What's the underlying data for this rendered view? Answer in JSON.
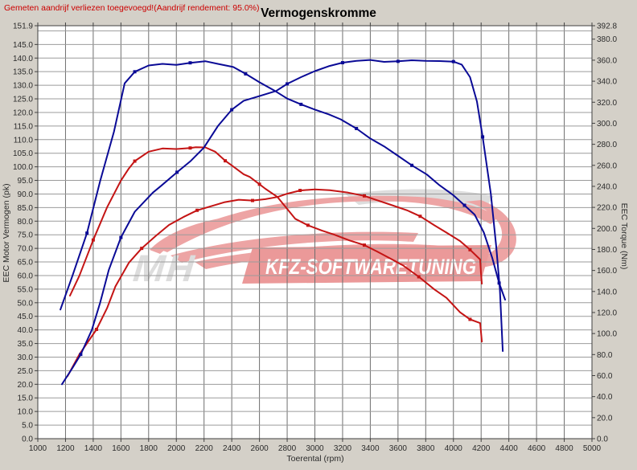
{
  "chart_data": {
    "type": "line",
    "title": "Vermogenskromme",
    "note": "Gemeten aandrijf verliezen toegevoegd!(Aandrijf rendement: 95.0%)",
    "xlabel": "Toerental (rpm)",
    "ylabel_left": "EEC Motor Vermogen (pk)",
    "ylabel_right": "EEC Torque (Nm)",
    "x_range": [
      1000,
      5000
    ],
    "y_left_range": [
      0,
      151.9
    ],
    "y_right_range": [
      0,
      392.8
    ],
    "grid": {
      "x_step": 200,
      "y_left_step": 5,
      "grid_on": true
    },
    "legend": "none",
    "x_tick_labels": [
      "1000",
      "1200",
      "1400",
      "1600",
      "1800",
      "2000",
      "2200",
      "2400",
      "2600",
      "2800",
      "3000",
      "3200",
      "3400",
      "3600",
      "3800",
      "4000",
      "4200",
      "4400",
      "4600",
      "4800",
      "5000"
    ],
    "y_left_tick_labels": [
      "151.9",
      "145.0",
      "140.0",
      "135.0",
      "130.0",
      "125.0",
      "120.0",
      "115.0",
      "110.0",
      "105.0",
      "100.0",
      "95.0",
      "90.0",
      "85.0",
      "80.0",
      "75.0",
      "70.0",
      "65.0",
      "60.0",
      "55.0",
      "50.0",
      "45.0",
      "40.0",
      "35.0",
      "30.0",
      "25.0",
      "20.0",
      "15.0",
      "10.0",
      "5.0",
      "0.0"
    ],
    "y_right_tick_labels": [
      "392.8",
      "380.0",
      "360.0",
      "340.0",
      "320.0",
      "300.0",
      "280.0",
      "260.0",
      "240.0",
      "220.0",
      "200.0",
      "180.0",
      "160.0",
      "140.0",
      "120.0",
      "100.0",
      "80.0",
      "60.0",
      "40.0",
      "20.0",
      "0.0"
    ],
    "colors": {
      "tuned": "#0a0a96",
      "stock": "#c41414",
      "note_text": "#cc0000",
      "title_text": "#000000",
      "tick_text": "#2b2b2b",
      "grid_vertical": "#6e6e6e",
      "grid_horizontal": "#9b9b9b",
      "plot_border": "#404040",
      "background": "#d4d0c8",
      "plot_background": "#ffffff",
      "watermark_red": "#eda0a0",
      "watermark_gray": "#dcdcdc",
      "banner_red": "#ea9494",
      "banner_text": "#ffffff"
    },
    "watermark": {
      "mh": "MH",
      "banner": "KFZ-SOFTWARETUNING"
    },
    "series": [
      {
        "name": "torque-stock",
        "axis": "right",
        "color_key": "stock",
        "unit": "Nm",
        "points": [
          [
            1232,
            136
          ],
          [
            1300,
            155
          ],
          [
            1400,
            189
          ],
          [
            1500,
            220
          ],
          [
            1600,
            245.5
          ],
          [
            1657,
            257
          ],
          [
            1700,
            264
          ],
          [
            1800,
            273
          ],
          [
            1900,
            276
          ],
          [
            2000,
            275.5
          ],
          [
            2100,
            276.5
          ],
          [
            2140,
            277.2
          ],
          [
            2210,
            277
          ],
          [
            2280,
            273
          ],
          [
            2353,
            264.3
          ],
          [
            2420,
            258
          ],
          [
            2486,
            251.5
          ],
          [
            2530,
            249
          ],
          [
            2600,
            242
          ],
          [
            2643,
            237.7
          ],
          [
            2730,
            229.9
          ],
          [
            2858,
            209.2
          ],
          [
            2950,
            203
          ],
          [
            3050,
            198
          ],
          [
            3140,
            194
          ],
          [
            3250,
            188.5
          ],
          [
            3357,
            184.1
          ],
          [
            3450,
            178
          ],
          [
            3550,
            171
          ],
          [
            3634,
            165
          ],
          [
            3750,
            154
          ],
          [
            3862,
            142
          ],
          [
            3950,
            134
          ],
          [
            4048,
            120.2
          ],
          [
            4120,
            113.5
          ],
          [
            4182,
            110.5
          ],
          [
            4193,
            109.9
          ],
          [
            4205,
            92.3
          ]
        ]
      },
      {
        "name": "vermogen-stock",
        "axis": "left",
        "color_key": "stock",
        "unit": "pk",
        "points": [
          [
            1215,
            23
          ],
          [
            1300,
            31
          ],
          [
            1424,
            40.2
          ],
          [
            1500,
            48
          ],
          [
            1560,
            56
          ],
          [
            1657,
            64.7
          ],
          [
            1750,
            70
          ],
          [
            1850,
            74.5
          ],
          [
            1947,
            78.6
          ],
          [
            2050,
            81.5
          ],
          [
            2150,
            84
          ],
          [
            2277,
            85.9
          ],
          [
            2350,
            87
          ],
          [
            2450,
            87.9
          ],
          [
            2550,
            87.6
          ],
          [
            2643,
            88.1
          ],
          [
            2730,
            88.9
          ],
          [
            2800,
            90.1
          ],
          [
            2893,
            91.3
          ],
          [
            3000,
            91.7
          ],
          [
            3108,
            91.4
          ],
          [
            3241,
            90.5
          ],
          [
            3357,
            89.3
          ],
          [
            3437,
            87.9
          ],
          [
            3550,
            86
          ],
          [
            3670,
            83.9
          ],
          [
            3760,
            81.8
          ],
          [
            3862,
            78.5
          ],
          [
            3950,
            75.8
          ],
          [
            4048,
            72.7
          ],
          [
            4120,
            69.5
          ],
          [
            4193,
            65.9
          ],
          [
            4199,
            61
          ],
          [
            4205,
            57
          ]
        ]
      },
      {
        "name": "torque-tuned",
        "axis": "right",
        "color_key": "tuned",
        "unit": "Nm",
        "points": [
          [
            1163,
            122.8
          ],
          [
            1250,
            155
          ],
          [
            1355,
            195.5
          ],
          [
            1450,
            245
          ],
          [
            1550,
            292
          ],
          [
            1627,
            338
          ],
          [
            1700,
            349
          ],
          [
            1800,
            355
          ],
          [
            1900,
            356.5
          ],
          [
            2000,
            355.5
          ],
          [
            2100,
            357.5
          ],
          [
            2209,
            359
          ],
          [
            2300,
            356.5
          ],
          [
            2411,
            353.5
          ],
          [
            2500,
            347
          ],
          [
            2600,
            339
          ],
          [
            2703,
            331.5
          ],
          [
            2800,
            323.5
          ],
          [
            2900,
            318
          ],
          [
            3000,
            313
          ],
          [
            3100,
            308.5
          ],
          [
            3186,
            303.8
          ],
          [
            3300,
            295
          ],
          [
            3400,
            285.5
          ],
          [
            3500,
            278
          ],
          [
            3600,
            269
          ],
          [
            3700,
            260
          ],
          [
            3808,
            251.3
          ],
          [
            3900,
            241
          ],
          [
            4000,
            231.5
          ],
          [
            4080,
            222
          ],
          [
            4153,
            213.1
          ],
          [
            4220,
            196
          ],
          [
            4280,
            172
          ],
          [
            4330,
            148
          ],
          [
            4373,
            132.2
          ]
        ]
      },
      {
        "name": "vermogen-tuned",
        "axis": "left",
        "color_key": "tuned",
        "unit": "pk",
        "points": [
          [
            1174,
            20
          ],
          [
            1250,
            26
          ],
          [
            1310,
            31
          ],
          [
            1390,
            40
          ],
          [
            1450,
            50
          ],
          [
            1512,
            62
          ],
          [
            1600,
            74
          ],
          [
            1700,
            83.5
          ],
          [
            1830,
            90.5
          ],
          [
            1890,
            93
          ],
          [
            2005,
            98
          ],
          [
            2100,
            102
          ],
          [
            2198,
            107
          ],
          [
            2300,
            115
          ],
          [
            2400,
            121
          ],
          [
            2486,
            124.3
          ],
          [
            2600,
            126
          ],
          [
            2721,
            127.9
          ],
          [
            2800,
            130.5
          ],
          [
            2900,
            133
          ],
          [
            3000,
            135.2
          ],
          [
            3100,
            137
          ],
          [
            3200,
            138.3
          ],
          [
            3300,
            139
          ],
          [
            3400,
            139.3
          ],
          [
            3500,
            138.6
          ],
          [
            3600,
            138.8
          ],
          [
            3700,
            139.2
          ],
          [
            3800,
            139
          ],
          [
            3900,
            138.9
          ],
          [
            4000,
            138.7
          ],
          [
            4060,
            137.6
          ],
          [
            4120,
            133
          ],
          [
            4170,
            124
          ],
          [
            4211,
            111
          ],
          [
            4270,
            90
          ],
          [
            4309,
            70.6
          ],
          [
            4335,
            55
          ],
          [
            4356,
            32.2
          ]
        ]
      }
    ]
  }
}
